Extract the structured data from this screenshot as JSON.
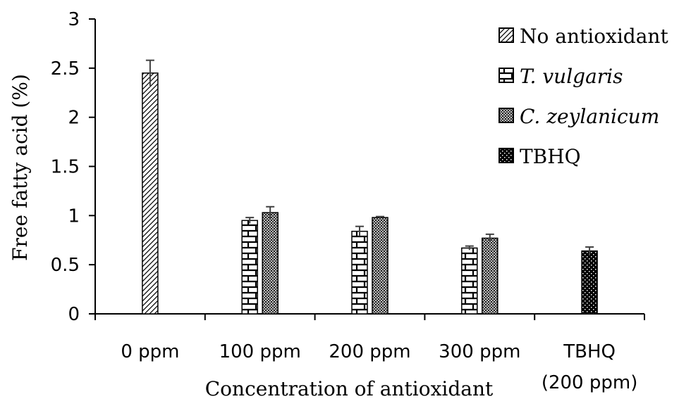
{
  "chart_data": {
    "type": "bar",
    "xlabel": "Concentration of antioxidant",
    "ylabel": "Free fatty acid (%)",
    "ylim": [
      0,
      3
    ],
    "yticks": [
      "0",
      "0.5",
      "1",
      "1.5",
      "2",
      "2.5",
      "3"
    ],
    "categories": [
      [
        "0 ppm"
      ],
      [
        "100 ppm"
      ],
      [
        "200 ppm"
      ],
      [
        "300 ppm"
      ],
      [
        "TBHQ",
        "(200 ppm)"
      ]
    ],
    "legend_position": "top-right",
    "grid": false,
    "series": [
      {
        "name": "No antioxidant",
        "italic": false,
        "pattern": "diagonal",
        "values": [
          2.45,
          null,
          null,
          null,
          null
        ],
        "errors": [
          0.13,
          null,
          null,
          null,
          null
        ]
      },
      {
        "name": "T. vulgaris",
        "italic": true,
        "pattern": "brick",
        "values": [
          null,
          0.95,
          0.84,
          0.67,
          null
        ],
        "errors": [
          null,
          0.03,
          0.05,
          0.02,
          null
        ]
      },
      {
        "name": "C. zeylanicum",
        "italic": true,
        "pattern": "dense",
        "values": [
          null,
          1.03,
          0.98,
          0.77,
          null
        ],
        "errors": [
          null,
          0.06,
          0.01,
          0.04,
          null
        ]
      },
      {
        "name": "TBHQ",
        "italic": false,
        "pattern": "dots",
        "values": [
          null,
          null,
          null,
          null,
          0.64
        ],
        "errors": [
          null,
          null,
          null,
          null,
          0.04
        ]
      }
    ]
  }
}
